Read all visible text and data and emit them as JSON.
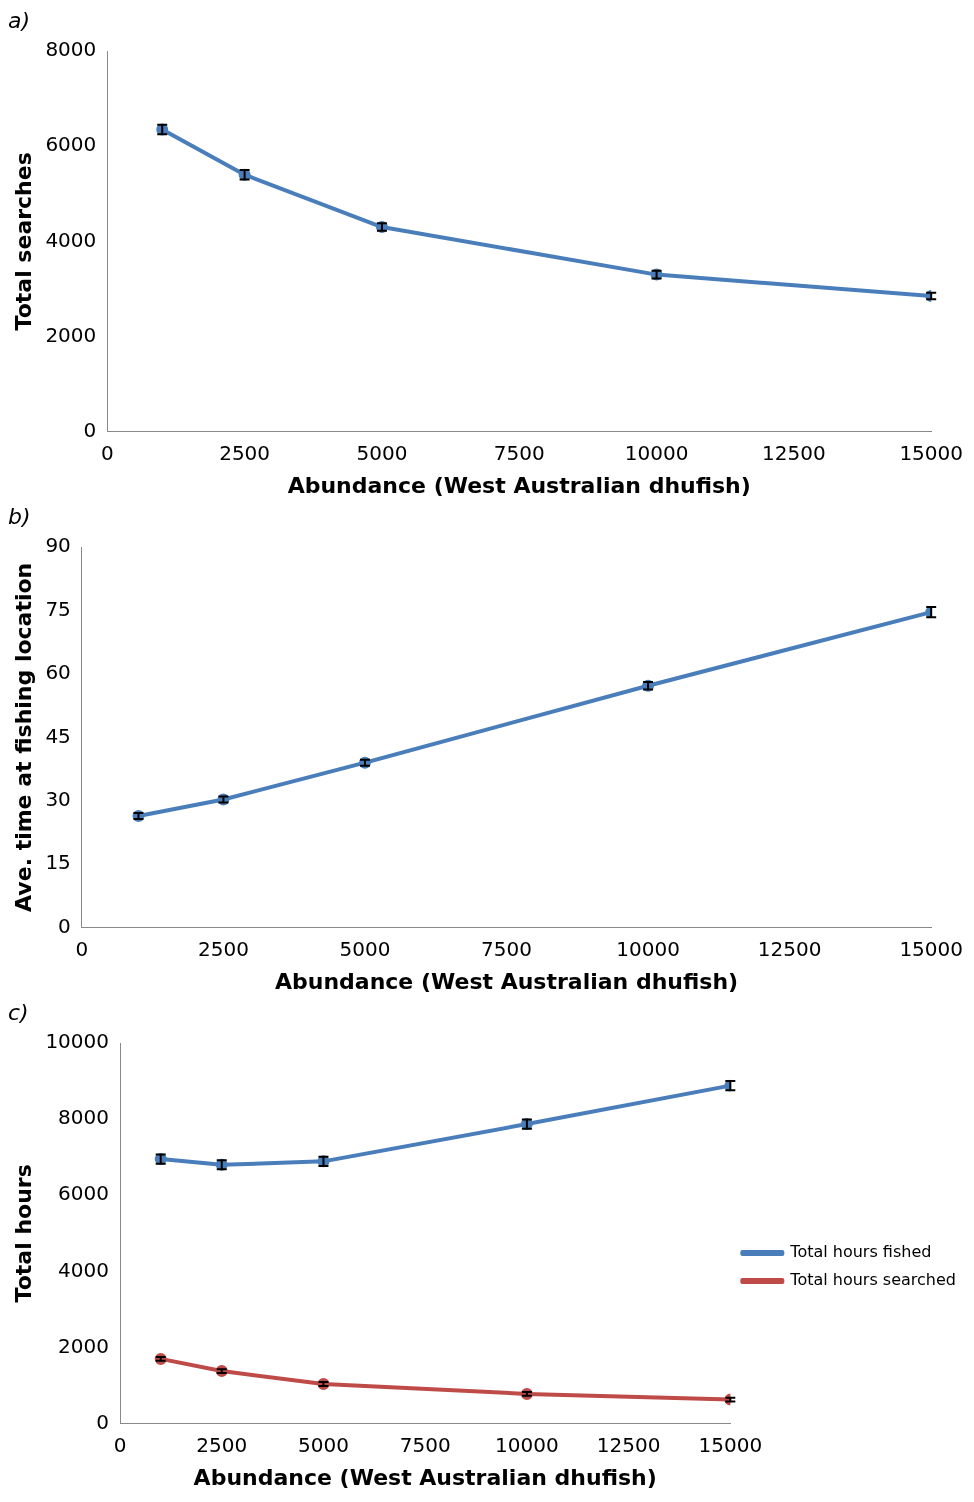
{
  "chart_data": [
    {
      "type": "line",
      "title": "a)",
      "xlabel": "Abundance (West Australian dhufish)",
      "ylabel": "Total searches",
      "x": [
        1000,
        2500,
        5000,
        10000,
        15000
      ],
      "series": [
        {
          "color": "#4a7ebb",
          "values": [
            6350,
            5400,
            4300,
            3300,
            2850
          ],
          "errors": [
            100,
            100,
            80,
            80,
            70
          ]
        }
      ],
      "xlim": [
        0,
        15000
      ],
      "xticks": [
        0,
        2500,
        5000,
        7500,
        10000,
        12500,
        15000
      ],
      "ylim": [
        0,
        8000
      ],
      "yticks": [
        0,
        2000,
        4000,
        6000,
        8000
      ],
      "grid": false,
      "legend": false,
      "marker": "circle"
    },
    {
      "type": "line",
      "title": "b)",
      "xlabel": "Abundance (West Australian dhufish)",
      "ylabel": "Ave. time at fishing location",
      "x": [
        1000,
        2500,
        5000,
        10000,
        15000
      ],
      "series": [
        {
          "color": "#4a7ebb",
          "values": [
            26.4,
            30.3,
            39,
            57.2,
            74.6
          ],
          "errors": [
            0.7,
            0.7,
            0.7,
            0.9,
            1.2
          ]
        }
      ],
      "xlim": [
        0,
        15000
      ],
      "xticks": [
        0,
        2500,
        5000,
        7500,
        10000,
        12500,
        15000
      ],
      "ylim": [
        0,
        90
      ],
      "yticks": [
        0,
        15,
        30,
        45,
        60,
        75,
        90
      ],
      "grid": false,
      "legend": false,
      "marker": "circle"
    },
    {
      "type": "line",
      "title": "c)",
      "xlabel": "Abundance (West Australian dhufish)",
      "ylabel": "Total hours",
      "x": [
        1000,
        2500,
        5000,
        10000,
        15000
      ],
      "series": [
        {
          "name": "Total hours fished",
          "color": "#4a7ebb",
          "values": [
            6950,
            6800,
            6890,
            7870,
            8880
          ],
          "errors": [
            120,
            120,
            120,
            120,
            120
          ]
        },
        {
          "name": "Total hours searched",
          "color": "#be4b48",
          "values": [
            1700,
            1380,
            1040,
            780,
            630
          ],
          "errors": [
            50,
            50,
            50,
            50,
            50
          ]
        }
      ],
      "xlim": [
        0,
        15000
      ],
      "xticks": [
        0,
        2500,
        5000,
        7500,
        10000,
        12500,
        15000
      ],
      "ylim": [
        0,
        10000
      ],
      "yticks": [
        0,
        2000,
        4000,
        6000,
        8000,
        10000
      ],
      "grid": false,
      "legend": "right",
      "marker": "circle"
    }
  ]
}
